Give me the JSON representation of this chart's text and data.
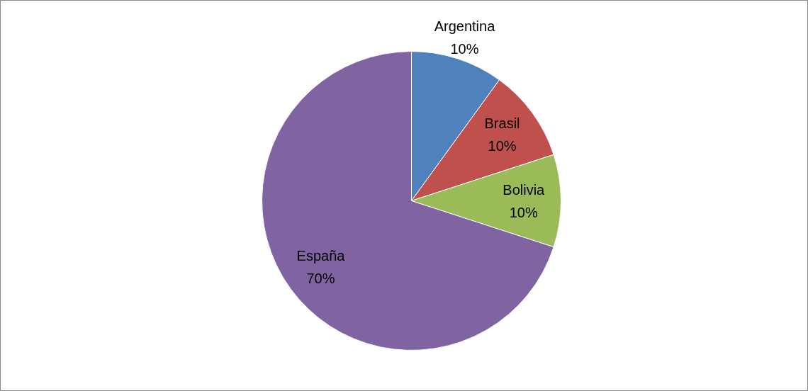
{
  "chart_data": {
    "type": "pie",
    "categories": [
      "Argentina",
      "Brasil",
      "Bolivia",
      "España"
    ],
    "values": [
      10,
      10,
      10,
      70
    ],
    "colors": [
      "#4f81bd",
      "#c0504d",
      "#9bbb59",
      "#8064a2"
    ],
    "value_labels": [
      "10%",
      "10%",
      "10%",
      "70%"
    ]
  }
}
